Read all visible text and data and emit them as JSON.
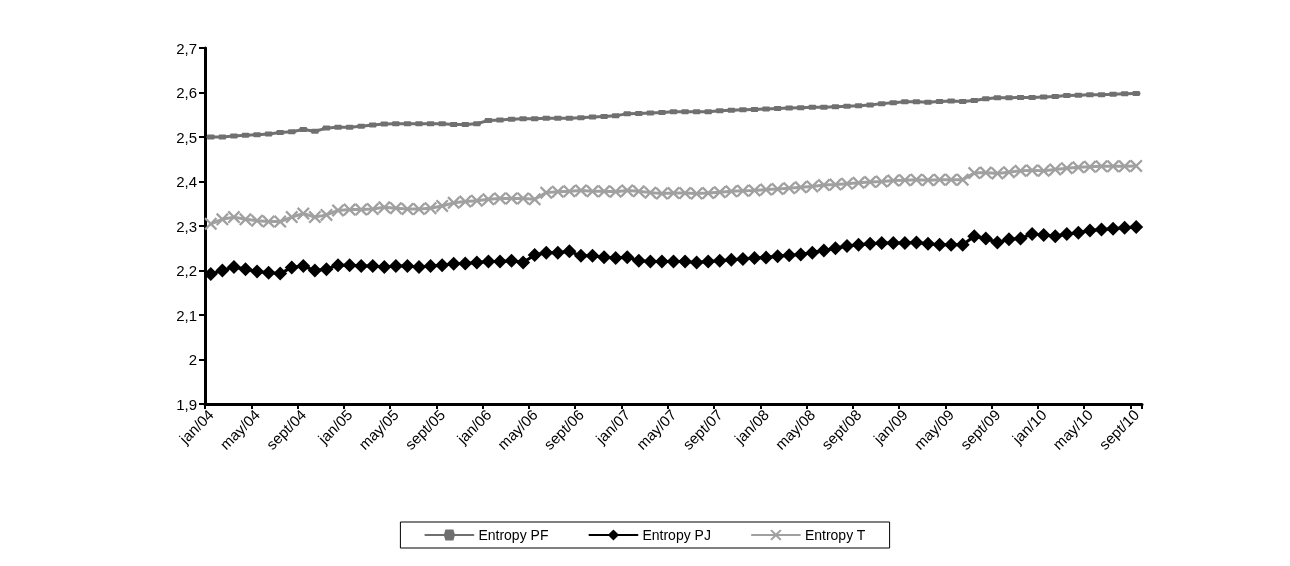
{
  "chart_data": {
    "type": "line",
    "categories": [
      "jan/04",
      null,
      null,
      null,
      "may/04",
      null,
      null,
      null,
      "sept/04",
      null,
      null,
      null,
      "jan/05",
      null,
      null,
      null,
      "may/05",
      null,
      null,
      null,
      "sept/05",
      null,
      null,
      null,
      "jan/06",
      null,
      null,
      null,
      "may/06",
      null,
      null,
      null,
      "sept/06",
      null,
      null,
      null,
      "jan/07",
      null,
      null,
      null,
      "may/07",
      null,
      null,
      null,
      "sept/07",
      null,
      null,
      null,
      "jan/08",
      null,
      null,
      null,
      "may/08",
      null,
      null,
      null,
      "sept/08",
      null,
      null,
      null,
      "jan/09",
      null,
      null,
      null,
      "may/09",
      null,
      null,
      null,
      "sept/09",
      null,
      null,
      null,
      "jan/10",
      null,
      null,
      null,
      "may/10",
      null,
      null,
      null,
      "sept/10"
    ],
    "series": [
      {
        "name": "Entropy PF",
        "color": "#707070",
        "marker": "square",
        "values": [
          2.5,
          2.5,
          2.502,
          2.504,
          2.505,
          2.507,
          2.51,
          2.512,
          2.517,
          2.513,
          2.52,
          2.522,
          2.522,
          2.524,
          2.527,
          2.529,
          2.53,
          2.53,
          2.53,
          2.53,
          2.53,
          2.528,
          2.528,
          2.53,
          2.537,
          2.538,
          2.54,
          2.541,
          2.541,
          2.542,
          2.542,
          2.542,
          2.543,
          2.545,
          2.546,
          2.548,
          2.552,
          2.553,
          2.554,
          2.555,
          2.557,
          2.557,
          2.557,
          2.557,
          2.559,
          2.56,
          2.561,
          2.562,
          2.563,
          2.564,
          2.565,
          2.566,
          2.567,
          2.567,
          2.568,
          2.569,
          2.57,
          2.572,
          2.575,
          2.577,
          2.579,
          2.579,
          2.578,
          2.58,
          2.581,
          2.58,
          2.582,
          2.586,
          2.588,
          2.588,
          2.589,
          2.589,
          2.59,
          2.591,
          2.593,
          2.594,
          2.595,
          2.595,
          2.596,
          2.597,
          2.598
        ]
      },
      {
        "name": "Entropy PJ",
        "color": "#000000",
        "marker": "diamond",
        "values": [
          2.192,
          2.2,
          2.208,
          2.203,
          2.198,
          2.195,
          2.193,
          2.207,
          2.21,
          2.2,
          2.203,
          2.212,
          2.212,
          2.21,
          2.21,
          2.208,
          2.21,
          2.21,
          2.208,
          2.21,
          2.212,
          2.215,
          2.216,
          2.218,
          2.22,
          2.22,
          2.222,
          2.218,
          2.235,
          2.24,
          2.24,
          2.243,
          2.233,
          2.233,
          2.23,
          2.228,
          2.23,
          2.222,
          2.22,
          2.22,
          2.22,
          2.22,
          2.218,
          2.22,
          2.222,
          2.224,
          2.226,
          2.228,
          2.229,
          2.232,
          2.234,
          2.236,
          2.24,
          2.245,
          2.25,
          2.255,
          2.258,
          2.26,
          2.262,
          2.262,
          2.262,
          2.263,
          2.26,
          2.258,
          2.258,
          2.258,
          2.277,
          2.272,
          2.263,
          2.27,
          2.272,
          2.282,
          2.28,
          2.277,
          2.282,
          2.285,
          2.29,
          2.292,
          2.294,
          2.296,
          2.298
        ]
      },
      {
        "name": "Entropy T",
        "color": "#a0a0a0",
        "marker": "cross",
        "values": [
          2.305,
          2.315,
          2.32,
          2.315,
          2.312,
          2.31,
          2.31,
          2.32,
          2.328,
          2.32,
          2.325,
          2.335,
          2.337,
          2.337,
          2.338,
          2.342,
          2.34,
          2.338,
          2.338,
          2.34,
          2.345,
          2.352,
          2.355,
          2.357,
          2.36,
          2.362,
          2.362,
          2.362,
          2.36,
          2.375,
          2.377,
          2.378,
          2.38,
          2.378,
          2.378,
          2.377,
          2.38,
          2.378,
          2.375,
          2.373,
          2.374,
          2.374,
          2.373,
          2.374,
          2.376,
          2.378,
          2.379,
          2.38,
          2.382,
          2.383,
          2.385,
          2.387,
          2.389,
          2.392,
          2.393,
          2.395,
          2.397,
          2.399,
          2.4,
          2.402,
          2.403,
          2.404,
          2.403,
          2.404,
          2.404,
          2.404,
          2.419,
          2.42,
          2.418,
          2.421,
          2.424,
          2.425,
          2.424,
          2.427,
          2.43,
          2.432,
          2.433,
          2.434,
          2.434,
          2.434,
          2.435
        ]
      }
    ],
    "ylim": [
      1.9,
      2.7
    ],
    "yticks": [
      {
        "value": 1.9,
        "label": "1,9"
      },
      {
        "value": 2.0,
        "label": "2"
      },
      {
        "value": 2.1,
        "label": "2,1"
      },
      {
        "value": 2.2,
        "label": "2,2"
      },
      {
        "value": 2.3,
        "label": "2,3"
      },
      {
        "value": 2.4,
        "label": "2,4"
      },
      {
        "value": 2.5,
        "label": "2,5"
      },
      {
        "value": 2.6,
        "label": "2,6"
      },
      {
        "value": 2.7,
        "label": "2,7"
      }
    ],
    "grid": false,
    "legend": "bottom",
    "line_style": "solid"
  }
}
